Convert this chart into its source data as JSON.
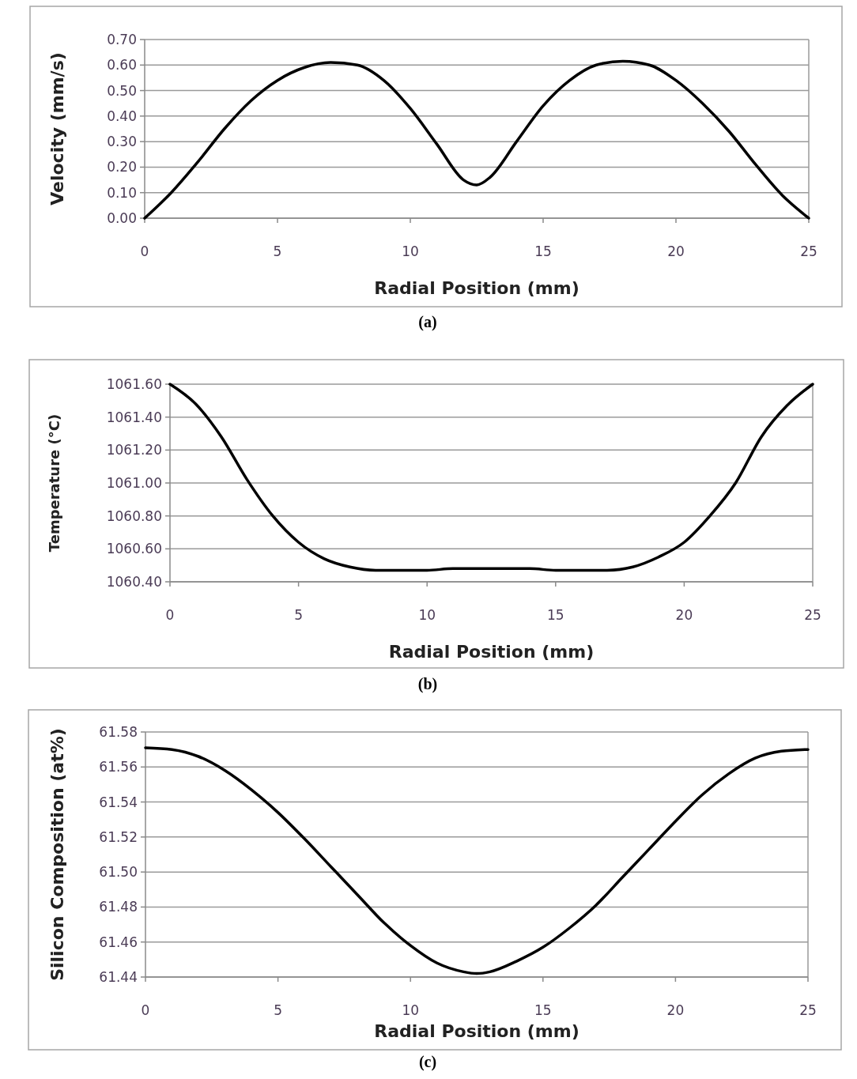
{
  "chart_data": [
    {
      "type": "line",
      "xlabel": "Radial Position (mm)",
      "ylabel": "Velocity (mm/s)",
      "annotations": [
        "(a)"
      ],
      "x": [
        0,
        1,
        2,
        3,
        4,
        5,
        6,
        7,
        8,
        9,
        10,
        11,
        12,
        12.5,
        13,
        14,
        15,
        16,
        17,
        18,
        19,
        20,
        21,
        22,
        23,
        24,
        25
      ],
      "series": [
        {
          "color": "#000000",
          "values": [
            0,
            0.1,
            0.22,
            0.35,
            0.46,
            0.54,
            0.59,
            0.61,
            0.6,
            0.54,
            0.43,
            0.29,
            0.15,
            0.13,
            0.16,
            0.3,
            0.44,
            0.54,
            0.6,
            0.615,
            0.6,
            0.54,
            0.45,
            0.34,
            0.21,
            0.09,
            0
          ]
        }
      ],
      "xlim": [
        0,
        25
      ],
      "xticks": [
        0,
        5,
        10,
        15,
        20,
        25
      ],
      "ylim": [
        0,
        0.7
      ],
      "yticks": [
        {
          "value": 0,
          "label": "0.00"
        },
        {
          "value": 0.1,
          "label": "0.10"
        },
        {
          "value": 0.2,
          "label": "0.20"
        },
        {
          "value": 0.3,
          "label": "0.30"
        },
        {
          "value": 0.4,
          "label": "0.40"
        },
        {
          "value": 0.5,
          "label": "0.50"
        },
        {
          "value": 0.6,
          "label": "0.60"
        },
        {
          "value": 0.7,
          "label": "0.70"
        }
      ],
      "grid": "y",
      "marker": "none",
      "line_style": "solid"
    },
    {
      "type": "line",
      "xlabel": "Radial Position (mm)",
      "ylabel": "Temperature (°C)",
      "annotations": [
        "(b)"
      ],
      "x": [
        0,
        1,
        2,
        3,
        4,
        5,
        6,
        7,
        8,
        9,
        10,
        11,
        12,
        13,
        14,
        15,
        16,
        17,
        18,
        19,
        20,
        21,
        22,
        23,
        24,
        25
      ],
      "series": [
        {
          "color": "#000000",
          "values": [
            1061.6,
            1061.48,
            1061.28,
            1061.02,
            1060.8,
            1060.64,
            1060.54,
            1060.49,
            1060.47,
            1060.47,
            1060.47,
            1060.48,
            1060.48,
            1060.48,
            1060.48,
            1060.47,
            1060.47,
            1060.47,
            1060.49,
            1060.55,
            1060.64,
            1060.8,
            1061.0,
            1061.28,
            1061.47,
            1061.6
          ]
        }
      ],
      "xlim": [
        0,
        25
      ],
      "xticks": [
        0,
        5,
        10,
        15,
        20,
        25
      ],
      "ylim": [
        1060.4,
        1061.6
      ],
      "yticks": [
        {
          "value": 1060.4,
          "label": "1060.40"
        },
        {
          "value": 1060.6,
          "label": "1060.60"
        },
        {
          "value": 1060.8,
          "label": "1060.80"
        },
        {
          "value": 1061,
          "label": "1061.00"
        },
        {
          "value": 1061.2,
          "label": "1061.20"
        },
        {
          "value": 1061.4,
          "label": "1061.40"
        },
        {
          "value": 1061.6,
          "label": "1061.60"
        }
      ],
      "grid": "y",
      "marker": "none",
      "line_style": "solid"
    },
    {
      "type": "line",
      "xlabel": "Radial Position (mm)",
      "ylabel": "Silicon Composition (at%)",
      "annotations": [
        "(c)"
      ],
      "x": [
        0,
        1,
        2,
        3,
        4,
        5,
        6,
        7,
        8,
        9,
        10,
        11,
        12,
        12.5,
        13,
        14,
        15,
        16,
        17,
        18,
        19,
        20,
        21,
        22,
        23,
        24,
        25
      ],
      "series": [
        {
          "color": "#000000",
          "values": [
            61.571,
            61.57,
            61.566,
            61.558,
            61.547,
            61.534,
            61.519,
            61.503,
            61.487,
            61.471,
            61.458,
            61.448,
            61.443,
            61.442,
            61.443,
            61.449,
            61.457,
            61.468,
            61.481,
            61.497,
            61.513,
            61.529,
            61.544,
            61.556,
            61.565,
            61.569,
            61.57
          ]
        }
      ],
      "xlim": [
        0,
        25
      ],
      "xticks": [
        0,
        5,
        10,
        15,
        20,
        25
      ],
      "ylim": [
        61.44,
        61.58
      ],
      "yticks": [
        {
          "value": 61.44,
          "label": "61.44"
        },
        {
          "value": 61.46,
          "label": "61.46"
        },
        {
          "value": 61.48,
          "label": "61.48"
        },
        {
          "value": 61.5,
          "label": "61.50"
        },
        {
          "value": 61.52,
          "label": "61.52"
        },
        {
          "value": 61.54,
          "label": "61.54"
        },
        {
          "value": 61.56,
          "label": "61.56"
        },
        {
          "value": 61.58,
          "label": "61.58"
        }
      ],
      "grid": "y",
      "marker": "none",
      "line_style": "solid"
    }
  ]
}
